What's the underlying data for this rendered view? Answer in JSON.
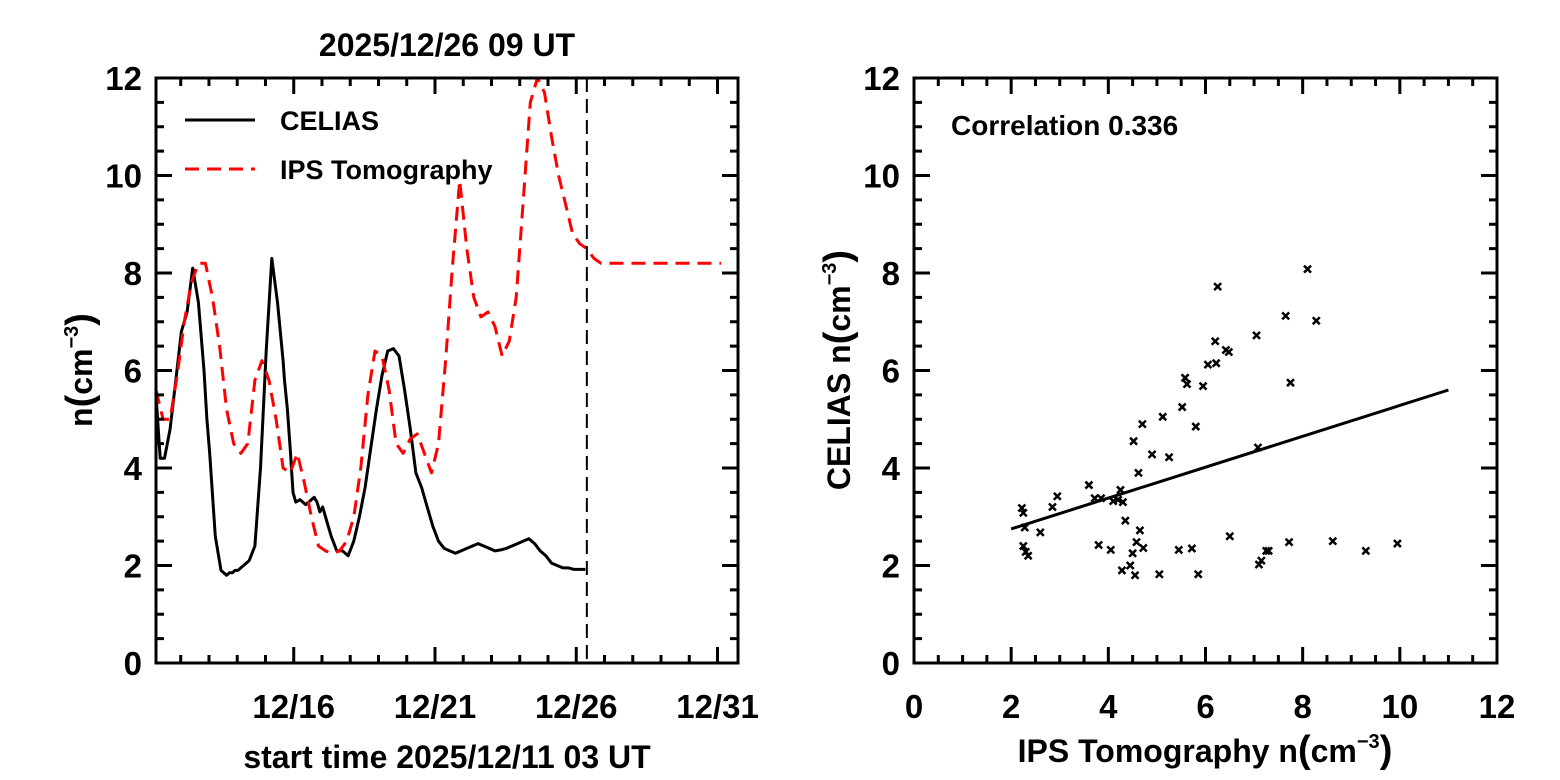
{
  "chart_data": [
    {
      "type": "line",
      "title": "2025/12/26 09 UT",
      "xlabel": "start time 2025/12/11 03 UT",
      "ylabel_main": "n",
      "ylabel_unit": "cm",
      "ylabel_exp": "−3",
      "xlim": [
        0,
        20.6
      ],
      "ylim": [
        0,
        12
      ],
      "yticks": [
        0,
        2,
        4,
        6,
        8,
        10,
        12
      ],
      "xticks": [
        {
          "x": 4.875,
          "label": "12/16"
        },
        {
          "x": 9.875,
          "label": "12/21"
        },
        {
          "x": 14.875,
          "label": "12/26"
        },
        {
          "x": 19.875,
          "label": "12/31"
        }
      ],
      "vline_x": 15.25,
      "legend_position": "top-left",
      "series": [
        {
          "name": "CELIAS",
          "style": "solid",
          "color": "#000000",
          "x": [
            0,
            0.15,
            0.3,
            0.5,
            0.7,
            0.9,
            1.1,
            1.3,
            1.5,
            1.7,
            1.8,
            1.9,
            2.1,
            2.3,
            2.5,
            2.6,
            2.7,
            2.8,
            2.9,
            3.0,
            3.1,
            3.3,
            3.5,
            3.7,
            3.9,
            4.1,
            4.3,
            4.4,
            4.5,
            4.55,
            4.65,
            4.75,
            4.85,
            4.95,
            5.1,
            5.3,
            5.5,
            5.6,
            5.7,
            5.8,
            5.9,
            6.0,
            6.2,
            6.4,
            6.6,
            6.8,
            7.0,
            7.2,
            7.4,
            7.6,
            7.8,
            8.0,
            8.2,
            8.4,
            8.6,
            8.8,
            9.0,
            9.2,
            9.4,
            9.6,
            9.8,
            10.0,
            10.2,
            10.4,
            10.6,
            10.8,
            11.0,
            11.2,
            11.4,
            11.6,
            11.8,
            12.0,
            12.2,
            12.4,
            12.6,
            12.8,
            13.0,
            13.2,
            13.4,
            13.6,
            13.8,
            14.0,
            14.2,
            14.4,
            14.6,
            14.8,
            15.0,
            15.2
          ],
          "y": [
            5.5,
            4.2,
            4.2,
            4.8,
            5.8,
            6.8,
            7.2,
            8.1,
            7.4,
            6.0,
            5.0,
            4.3,
            2.6,
            1.9,
            1.8,
            1.85,
            1.85,
            1.9,
            1.9,
            1.95,
            2.0,
            2.1,
            2.4,
            4.0,
            6.4,
            8.3,
            7.4,
            6.8,
            6.2,
            5.8,
            5.2,
            4.4,
            3.5,
            3.3,
            3.35,
            3.25,
            3.35,
            3.4,
            3.3,
            3.1,
            3.2,
            3.0,
            2.6,
            2.3,
            2.3,
            2.2,
            2.5,
            3.0,
            3.6,
            4.4,
            5.2,
            5.9,
            6.4,
            6.45,
            6.3,
            5.6,
            4.8,
            3.9,
            3.6,
            3.2,
            2.8,
            2.5,
            2.35,
            2.3,
            2.25,
            2.3,
            2.35,
            2.4,
            2.45,
            2.4,
            2.35,
            2.3,
            2.32,
            2.35,
            2.4,
            2.45,
            2.5,
            2.55,
            2.45,
            2.3,
            2.2,
            2.05,
            2.0,
            1.95,
            1.95,
            1.92,
            1.92,
            1.92
          ]
        },
        {
          "name": "IPS Tomography",
          "style": "dashed",
          "color": "#ff0000",
          "x": [
            0,
            0.25,
            0.5,
            0.75,
            1.0,
            1.25,
            1.5,
            1.75,
            2.0,
            2.25,
            2.5,
            2.75,
            3.0,
            3.25,
            3.5,
            3.75,
            4.0,
            4.25,
            4.5,
            4.75,
            5.0,
            5.25,
            5.5,
            5.75,
            6.0,
            6.25,
            6.5,
            6.75,
            7.0,
            7.25,
            7.5,
            7.75,
            8.0,
            8.25,
            8.5,
            8.75,
            9.0,
            9.25,
            9.5,
            9.75,
            10.0,
            10.25,
            10.5,
            10.75,
            11.0,
            11.25,
            11.5,
            11.75,
            12.0,
            12.25,
            12.5,
            12.75,
            13.0,
            13.25,
            13.5,
            13.75,
            14.0,
            14.25,
            14.5,
            14.75,
            15.0,
            15.25,
            15.5,
            15.75,
            16.0,
            16.25,
            16.5,
            16.75,
            17.0,
            17.25,
            17.5,
            17.75,
            18.0,
            18.25,
            18.5,
            18.75,
            19.0,
            19.25,
            19.5,
            19.75,
            20.0
          ],
          "y": [
            5.6,
            5.0,
            5.0,
            5.9,
            7.0,
            7.8,
            8.2,
            8.2,
            7.5,
            6.5,
            5.2,
            4.5,
            4.3,
            4.5,
            5.8,
            6.2,
            5.8,
            5.0,
            4.0,
            3.9,
            4.3,
            3.7,
            3.0,
            2.4,
            2.3,
            2.25,
            2.3,
            2.5,
            3.0,
            4.0,
            5.5,
            6.4,
            6.3,
            5.6,
            4.5,
            4.3,
            4.6,
            4.7,
            4.3,
            3.9,
            4.5,
            6.2,
            8.2,
            9.9,
            8.5,
            7.5,
            7.1,
            7.2,
            6.9,
            6.3,
            6.6,
            7.5,
            9.5,
            11.5,
            12.2,
            11.7,
            10.8,
            10.0,
            9.4,
            8.8,
            8.6,
            8.5,
            8.3,
            8.2,
            8.2,
            8.2,
            8.2,
            8.2,
            8.2,
            8.2,
            8.2,
            8.2,
            8.2,
            8.2,
            8.2,
            8.2,
            8.2,
            8.2,
            8.2,
            8.2,
            8.2
          ]
        }
      ]
    },
    {
      "type": "scatter",
      "xlabel_main": "IPS Tomography  n",
      "xlabel_unit": "cm",
      "xlabel_exp": "−3",
      "ylabel_main": "CELIAS   n",
      "ylabel_unit": "cm",
      "ylabel_exp": "−3",
      "xlim": [
        0,
        12
      ],
      "ylim": [
        0,
        12
      ],
      "xticks": [
        0,
        2,
        4,
        6,
        8,
        10,
        12
      ],
      "yticks": [
        0,
        2,
        4,
        6,
        8,
        10,
        12
      ],
      "annotation": "Correlation 0.336",
      "fit_line": {
        "x": [
          2.0,
          11.0
        ],
        "y": [
          2.75,
          5.6
        ]
      },
      "points": [
        [
          2.22,
          3.18
        ],
        [
          2.25,
          3.08
        ],
        [
          2.28,
          2.78
        ],
        [
          2.25,
          2.4
        ],
        [
          2.3,
          2.28
        ],
        [
          2.35,
          2.2
        ],
        [
          2.6,
          2.68
        ],
        [
          2.85,
          3.2
        ],
        [
          2.95,
          3.42
        ],
        [
          3.6,
          3.65
        ],
        [
          3.72,
          3.38
        ],
        [
          3.85,
          3.38
        ],
        [
          3.8,
          2.42
        ],
        [
          4.05,
          2.32
        ],
        [
          4.1,
          3.32
        ],
        [
          4.2,
          3.35
        ],
        [
          4.25,
          3.55
        ],
        [
          4.3,
          3.3
        ],
        [
          4.35,
          2.92
        ],
        [
          4.28,
          1.9
        ],
        [
          4.45,
          2.0
        ],
        [
          4.5,
          2.25
        ],
        [
          4.55,
          1.8
        ],
        [
          4.58,
          2.48
        ],
        [
          4.65,
          2.72
        ],
        [
          4.72,
          2.36
        ],
        [
          4.52,
          4.55
        ],
        [
          4.7,
          4.9
        ],
        [
          4.62,
          3.9
        ],
        [
          4.9,
          4.28
        ],
        [
          5.05,
          1.82
        ],
        [
          5.12,
          5.05
        ],
        [
          5.25,
          4.22
        ],
        [
          5.45,
          2.32
        ],
        [
          5.52,
          5.25
        ],
        [
          5.58,
          5.85
        ],
        [
          5.62,
          5.72
        ],
        [
          5.72,
          2.35
        ],
        [
          5.8,
          4.85
        ],
        [
          5.85,
          1.82
        ],
        [
          5.95,
          5.68
        ],
        [
          6.05,
          6.12
        ],
        [
          6.2,
          6.6
        ],
        [
          6.22,
          6.15
        ],
        [
          6.25,
          7.72
        ],
        [
          6.42,
          6.42
        ],
        [
          6.48,
          6.38
        ],
        [
          6.5,
          2.6
        ],
        [
          7.05,
          6.72
        ],
        [
          7.08,
          4.42
        ],
        [
          7.1,
          2.02
        ],
        [
          7.15,
          2.1
        ],
        [
          7.25,
          2.3
        ],
        [
          7.3,
          2.3
        ],
        [
          7.65,
          7.12
        ],
        [
          7.75,
          5.75
        ],
        [
          7.72,
          2.48
        ],
        [
          8.1,
          8.08
        ],
        [
          8.28,
          7.02
        ],
        [
          8.62,
          2.5
        ],
        [
          9.3,
          2.3
        ],
        [
          9.95,
          2.45
        ]
      ]
    }
  ]
}
